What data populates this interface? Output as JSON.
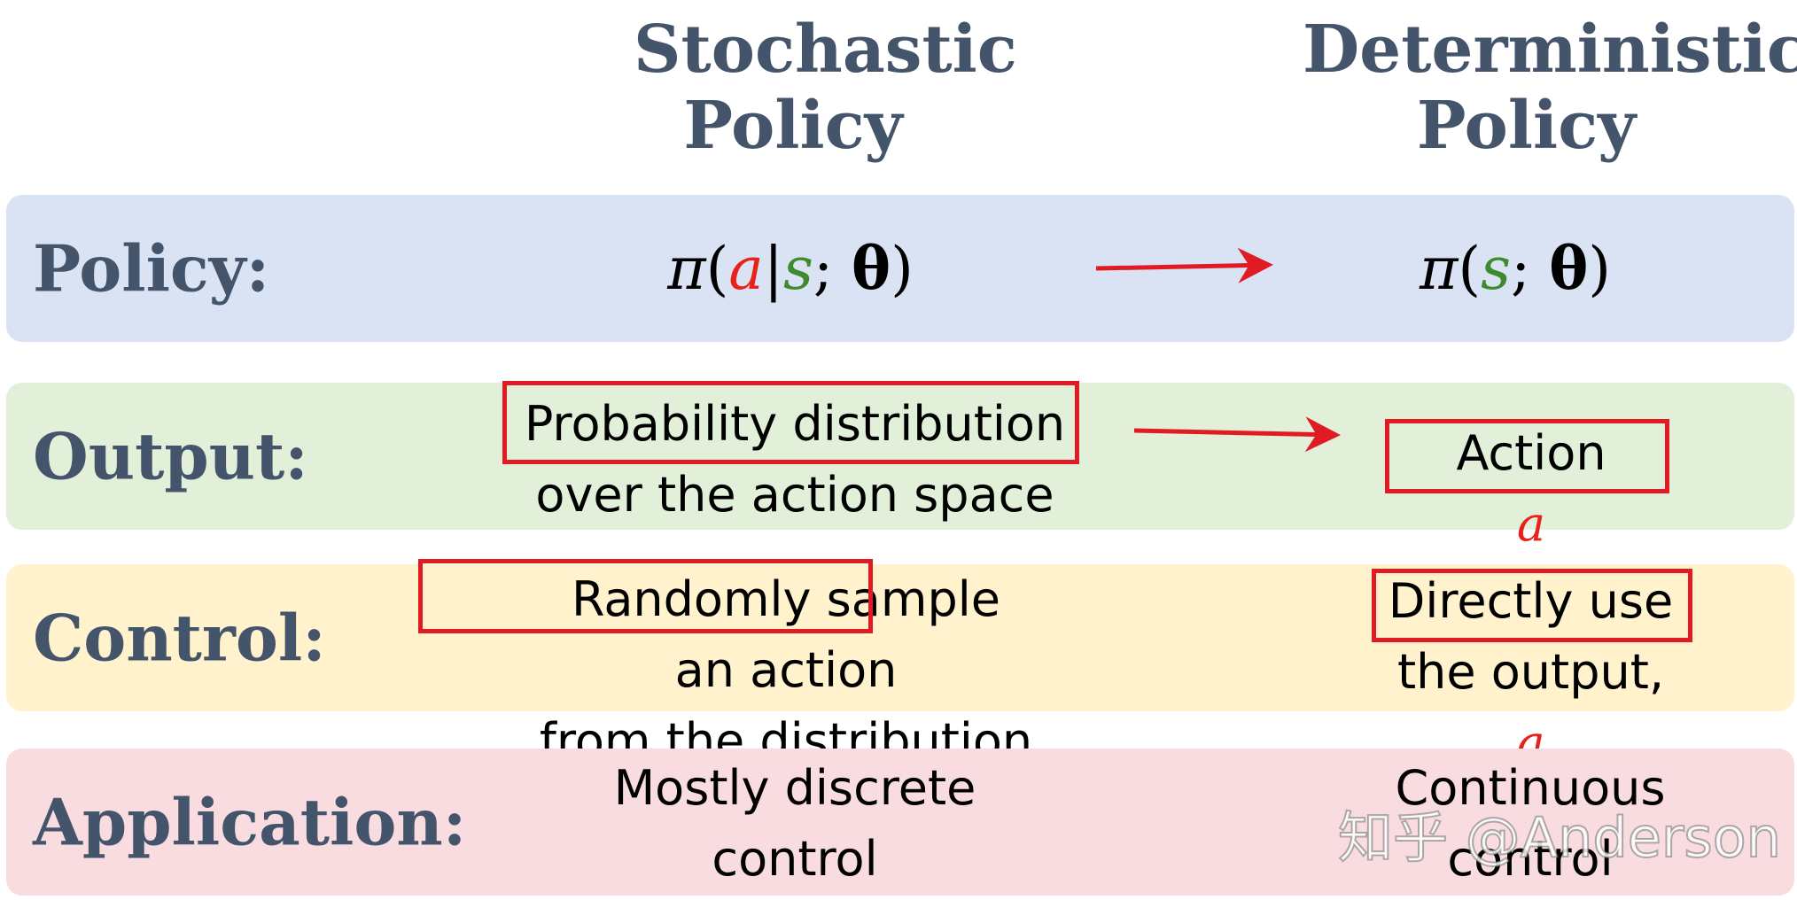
{
  "columns": {
    "stochastic": [
      "Stochastic",
      "Policy"
    ],
    "deterministic": [
      "Deterministic",
      "Policy"
    ]
  },
  "rows": {
    "policy": {
      "label": "Policy:",
      "stochastic_formula": {
        "pi": "π",
        "open": "(",
        "a": "a",
        "bar": "|",
        "s": "s",
        "semi": "; ",
        "theta": "θ",
        "close": ")"
      },
      "deterministic_formula": {
        "pi": "π",
        "open": "(",
        "s": "s",
        "semi": "; ",
        "theta": "θ",
        "close": ")"
      }
    },
    "output": {
      "label": "Output:",
      "stochastic_lines": [
        "Probability distribution",
        "over the action space"
      ],
      "deterministic_text": "Action",
      "deterministic_var": "a"
    },
    "control": {
      "label": "Control:",
      "stochastic_boxed": "Randomly sample",
      "stochastic_rest": " an action",
      "stochastic_line2": "from the distribution",
      "deterministic_line1": "Directly use",
      "deterministic_line2": "the output, ",
      "deterministic_var": "a"
    },
    "application": {
      "label": "Application:",
      "stochastic_lines": [
        "Mostly discrete",
        "control"
      ],
      "deterministic_lines": [
        "Continuous",
        "control"
      ]
    }
  },
  "watermark": "知乎 @Anderson",
  "colors": {
    "policy_row": "#dae3f3",
    "output_row": "#e2f0d9",
    "control_row": "#fff2cc",
    "application_row": "#f8dce0",
    "label_text": "#44546a",
    "highlight_red": "#e01b24",
    "state_green": "#3e8a2e"
  }
}
